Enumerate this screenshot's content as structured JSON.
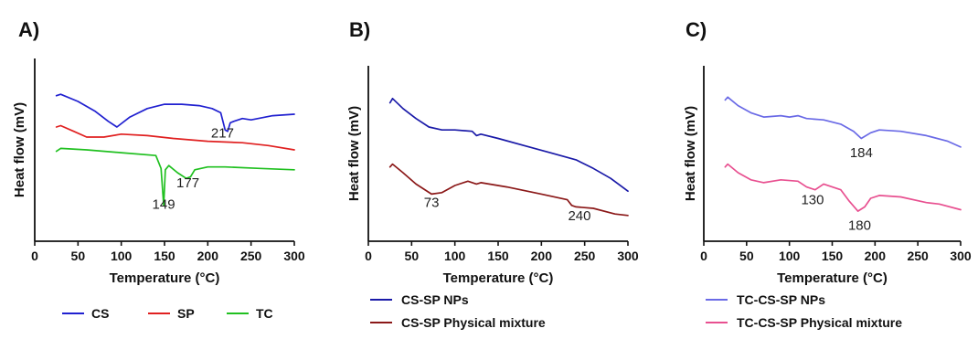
{
  "chart_data": [
    {
      "panel": "A)",
      "type": "line",
      "xlabel": "Temperature (°C)",
      "ylabel": "Heat flow (mV)",
      "xlim": [
        0,
        300
      ],
      "xticks": [
        0,
        50,
        100,
        150,
        200,
        250,
        300
      ],
      "ylim": [
        0,
        1
      ],
      "legend_position": "bottom",
      "series": [
        {
          "name": "CS",
          "color": "#2020d0",
          "x": [
            25,
            30,
            50,
            70,
            85,
            95,
            110,
            130,
            150,
            170,
            190,
            205,
            215,
            220,
            223,
            226,
            230,
            240,
            250,
            275,
            300
          ],
          "y": [
            0.88,
            0.89,
            0.84,
            0.77,
            0.7,
            0.66,
            0.73,
            0.79,
            0.82,
            0.82,
            0.81,
            0.79,
            0.76,
            0.64,
            0.63,
            0.69,
            0.7,
            0.72,
            0.71,
            0.74,
            0.75
          ]
        },
        {
          "name": "SP",
          "color": "#e02020",
          "x": [
            25,
            30,
            45,
            60,
            80,
            100,
            130,
            160,
            200,
            240,
            270,
            300
          ],
          "y": [
            0.66,
            0.67,
            0.63,
            0.59,
            0.59,
            0.61,
            0.6,
            0.58,
            0.56,
            0.55,
            0.53,
            0.5
          ]
        },
        {
          "name": "TC",
          "color": "#20c020",
          "x": [
            25,
            30,
            60,
            100,
            140,
            146,
            149,
            151,
            155,
            165,
            175,
            180,
            185,
            200,
            220,
            260,
            300
          ],
          "y": [
            0.49,
            0.51,
            0.5,
            0.48,
            0.46,
            0.37,
            0.11,
            0.36,
            0.39,
            0.34,
            0.3,
            0.31,
            0.36,
            0.38,
            0.38,
            0.37,
            0.36
          ]
        }
      ],
      "annotations": [
        {
          "text": "217",
          "x": 217,
          "y": 0.62
        },
        {
          "text": "177",
          "x": 177,
          "y": 0.27
        },
        {
          "text": "149",
          "x": 149,
          "y": 0.12
        }
      ]
    },
    {
      "panel": "B)",
      "type": "line",
      "xlabel": "Temperature (°C)",
      "ylabel": "Heat flow (mV)",
      "xlim": [
        0,
        300
      ],
      "xticks": [
        0,
        50,
        100,
        150,
        200,
        250,
        300
      ],
      "ylim": [
        0,
        1
      ],
      "legend_position": "bottom",
      "series": [
        {
          "name": "CS-SP NPs",
          "color": "#1a1aa8",
          "x": [
            25,
            28,
            40,
            55,
            70,
            85,
            100,
            120,
            125,
            130,
            150,
            180,
            210,
            240,
            260,
            280,
            300
          ],
          "y": [
            0.83,
            0.86,
            0.79,
            0.72,
            0.66,
            0.64,
            0.64,
            0.63,
            0.6,
            0.61,
            0.58,
            0.53,
            0.48,
            0.43,
            0.37,
            0.3,
            0.21
          ]
        },
        {
          "name": "CS-SP Physical mixture",
          "color": "#8b1818",
          "x": [
            25,
            28,
            40,
            55,
            73,
            85,
            100,
            115,
            125,
            130,
            160,
            200,
            230,
            235,
            240,
            260,
            285,
            300
          ],
          "y": [
            0.38,
            0.4,
            0.34,
            0.26,
            0.19,
            0.2,
            0.25,
            0.28,
            0.26,
            0.27,
            0.24,
            0.19,
            0.15,
            0.11,
            0.1,
            0.09,
            0.05,
            0.04
          ]
        }
      ],
      "annotations": [
        {
          "text": "73",
          "x": 73,
          "y": 0.13
        },
        {
          "text": "240",
          "x": 244,
          "y": 0.04
        }
      ]
    },
    {
      "panel": "C)",
      "type": "line",
      "xlabel": "Temperature (°C)",
      "ylabel": "Heat flow (mV)",
      "xlim": [
        0,
        300
      ],
      "xticks": [
        0,
        50,
        100,
        150,
        200,
        250,
        300
      ],
      "ylim": [
        0,
        1
      ],
      "legend_position": "bottom",
      "series": [
        {
          "name": "TC-CS-SP NPs",
          "color": "#6a6ae6",
          "x": [
            25,
            28,
            40,
            55,
            70,
            90,
            100,
            110,
            120,
            140,
            160,
            175,
            184,
            195,
            205,
            230,
            260,
            285,
            300
          ],
          "y": [
            0.85,
            0.87,
            0.81,
            0.76,
            0.73,
            0.74,
            0.73,
            0.74,
            0.72,
            0.71,
            0.68,
            0.63,
            0.58,
            0.62,
            0.64,
            0.63,
            0.6,
            0.56,
            0.52
          ]
        },
        {
          "name": "TC-CS-SP Physical mixture",
          "color": "#e85090",
          "x": [
            25,
            28,
            40,
            55,
            70,
            90,
            110,
            120,
            130,
            140,
            150,
            160,
            170,
            180,
            188,
            195,
            205,
            230,
            260,
            275,
            300
          ],
          "y": [
            0.38,
            0.4,
            0.34,
            0.29,
            0.27,
            0.29,
            0.28,
            0.24,
            0.22,
            0.26,
            0.24,
            0.22,
            0.14,
            0.07,
            0.1,
            0.16,
            0.18,
            0.17,
            0.13,
            0.12,
            0.08
          ]
        }
      ],
      "annotations": [
        {
          "text": "184",
          "x": 184,
          "y": 0.48
        },
        {
          "text": "130",
          "x": 127,
          "y": 0.15
        },
        {
          "text": "180",
          "x": 182,
          "y": -0.03
        }
      ]
    }
  ]
}
